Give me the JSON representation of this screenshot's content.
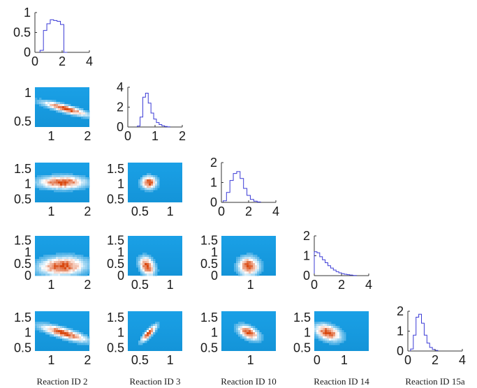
{
  "chart_data": {
    "type": "corner",
    "variables": [
      "Reaction ID 2",
      "Reaction ID 3",
      "Reaction ID 10",
      "Reaction ID 14",
      "Reaction ID 15a"
    ],
    "colors": {
      "histogram_line": "#3b3bd6",
      "density_low": "#1a9be0",
      "density_mid": "#ffffff",
      "density_high": "#d9480f",
      "axis": "#333333"
    },
    "diagonals": [
      {
        "variable": "Reaction ID 2",
        "xlim": [
          0,
          4
        ],
        "xticks": [
          "0",
          "2",
          "4"
        ],
        "ylim": [
          0,
          1
        ],
        "yticks": [
          "0",
          "0.5",
          "1"
        ],
        "hist": {
          "x": [
            0.5,
            0.75,
            1.0,
            1.25,
            1.5,
            1.75,
            2.0,
            2.25
          ],
          "y": [
            0.05,
            0.55,
            0.72,
            0.82,
            0.8,
            0.78,
            0.7,
            0.0
          ]
        }
      },
      {
        "variable": "Reaction ID 3",
        "xlim": [
          0,
          2
        ],
        "xticks": [
          "0",
          "1",
          "2"
        ],
        "ylim": [
          0,
          4
        ],
        "yticks": [
          "0",
          "2",
          "4"
        ],
        "hist": {
          "x": [
            0.4,
            0.5,
            0.6,
            0.7,
            0.8,
            0.9,
            1.0,
            1.1,
            1.2,
            1.3,
            1.4,
            1.5
          ],
          "y": [
            0.1,
            1.0,
            3.0,
            3.4,
            2.4,
            1.4,
            0.8,
            0.45,
            0.25,
            0.12,
            0.05,
            0.02
          ]
        }
      },
      {
        "variable": "Reaction ID 10",
        "xlim": [
          0,
          4
        ],
        "xticks": [
          "0",
          "2",
          "4"
        ],
        "ylim": [
          0,
          2
        ],
        "yticks": [
          "0",
          "1",
          "2"
        ],
        "hist": {
          "x": [
            0.25,
            0.5,
            0.75,
            1.0,
            1.25,
            1.5,
            1.75,
            2.0,
            2.25,
            2.5,
            2.75
          ],
          "y": [
            0.08,
            0.5,
            1.1,
            1.45,
            1.55,
            1.2,
            0.7,
            0.35,
            0.15,
            0.06,
            0.02
          ]
        }
      },
      {
        "variable": "Reaction ID 14",
        "xlim": [
          0,
          4
        ],
        "xticks": [
          "0",
          "2",
          "4"
        ],
        "ylim": [
          0,
          2
        ],
        "yticks": [
          "0",
          "1",
          "2"
        ],
        "hist": {
          "x": [
            0.1,
            0.3,
            0.5,
            0.7,
            0.9,
            1.1,
            1.3,
            1.5,
            1.7,
            1.9,
            2.1,
            2.3,
            2.5,
            2.7,
            3.0
          ],
          "y": [
            1.2,
            1.15,
            0.95,
            0.8,
            0.65,
            0.5,
            0.38,
            0.28,
            0.2,
            0.14,
            0.1,
            0.07,
            0.05,
            0.03,
            0.01
          ]
        }
      },
      {
        "variable": "Reaction ID 15a",
        "xlim": [
          0,
          4
        ],
        "xticks": [
          "0",
          "2",
          "4"
        ],
        "ylim": [
          0,
          2
        ],
        "yticks": [
          "0",
          "1",
          "2"
        ],
        "hist": {
          "x": [
            0.3,
            0.5,
            0.7,
            0.9,
            1.1,
            1.3,
            1.5,
            1.7,
            1.9,
            2.1
          ],
          "y": [
            0.1,
            0.8,
            1.7,
            1.85,
            1.4,
            0.8,
            0.4,
            0.18,
            0.08,
            0.03
          ]
        }
      }
    ],
    "offdiagonal": [
      {
        "row": 1,
        "col": 0,
        "xlim": [
          0.55,
          2.05
        ],
        "ylim": [
          0.4,
          1.1
        ],
        "xticks": [
          {
            "v": 1,
            "t": "1"
          },
          {
            "v": 2,
            "t": "2"
          }
        ],
        "yticks": [
          {
            "v": 0.5,
            "t": "0.5"
          },
          {
            "v": 1,
            "t": "1"
          }
        ],
        "mean": [
          1.4,
          0.72
        ],
        "sd": [
          0.4,
          0.08
        ],
        "corr": -0.85
      },
      {
        "row": 2,
        "col": 0,
        "xlim": [
          0.55,
          2.05
        ],
        "ylim": [
          0.4,
          1.7
        ],
        "xticks": [
          {
            "v": 1,
            "t": "1"
          },
          {
            "v": 2,
            "t": "2"
          }
        ],
        "yticks": [
          {
            "v": 0.5,
            "t": "0.5"
          },
          {
            "v": 1,
            "t": "1"
          },
          {
            "v": 1.5,
            "t": "1.5"
          }
        ],
        "mean": [
          1.3,
          1.05
        ],
        "sd": [
          0.4,
          0.13
        ],
        "corr": 0.0
      },
      {
        "row": 2,
        "col": 1,
        "xlim": [
          0.3,
          1.2
        ],
        "ylim": [
          0.4,
          1.7
        ],
        "xticks": [
          {
            "v": 0.5,
            "t": "0.5"
          },
          {
            "v": 1,
            "t": "1"
          }
        ],
        "yticks": [
          {
            "v": 0.5,
            "t": "0.5"
          },
          {
            "v": 1,
            "t": "1"
          },
          {
            "v": 1.5,
            "t": "1.5"
          }
        ],
        "mean": [
          0.65,
          1.05
        ],
        "sd": [
          0.08,
          0.13
        ],
        "corr": 0.0
      },
      {
        "row": 3,
        "col": 0,
        "xlim": [
          0.55,
          2.05
        ],
        "ylim": [
          0,
          1.7
        ],
        "xticks": [
          {
            "v": 1,
            "t": "1"
          },
          {
            "v": 2,
            "t": "2"
          }
        ],
        "yticks": [
          {
            "v": 0,
            "t": "0"
          },
          {
            "v": 0.5,
            "t": "0.5"
          },
          {
            "v": 1,
            "t": "1"
          },
          {
            "v": 1.5,
            "t": "1.5"
          }
        ],
        "mean": [
          1.3,
          0.4
        ],
        "sd": [
          0.4,
          0.25
        ],
        "corr": 0.1
      },
      {
        "row": 3,
        "col": 1,
        "xlim": [
          0.3,
          1.2
        ],
        "ylim": [
          0,
          1.7
        ],
        "xticks": [
          {
            "v": 0.5,
            "t": "0.5"
          },
          {
            "v": 1,
            "t": "1"
          }
        ],
        "yticks": [
          {
            "v": 0,
            "t": "0"
          },
          {
            "v": 0.5,
            "t": "0.5"
          },
          {
            "v": 1,
            "t": "1"
          },
          {
            "v": 1.5,
            "t": "1.5"
          }
        ],
        "mean": [
          0.62,
          0.4
        ],
        "sd": [
          0.08,
          0.25
        ],
        "corr": -0.3
      },
      {
        "row": 3,
        "col": 2,
        "xlim": [
          0.2,
          1.7
        ],
        "ylim": [
          0,
          1.7
        ],
        "xticks": [
          {
            "v": 1,
            "t": "1"
          }
        ],
        "yticks": [
          {
            "v": 0,
            "t": "0"
          },
          {
            "v": 0.5,
            "t": "0.5"
          },
          {
            "v": 1,
            "t": "1"
          },
          {
            "v": 1.5,
            "t": "1.5"
          }
        ],
        "mean": [
          0.95,
          0.4
        ],
        "sd": [
          0.18,
          0.25
        ],
        "corr": 0.0
      },
      {
        "row": 4,
        "col": 0,
        "xlim": [
          0.55,
          2.05
        ],
        "ylim": [
          0.4,
          1.7
        ],
        "xticks": [
          {
            "v": 1,
            "t": "1"
          },
          {
            "v": 2,
            "t": "2"
          }
        ],
        "yticks": [
          {
            "v": 0.5,
            "t": "0.5"
          },
          {
            "v": 1,
            "t": "1"
          },
          {
            "v": 1.5,
            "t": "1.5"
          }
        ],
        "mean": [
          1.35,
          0.98
        ],
        "sd": [
          0.4,
          0.17
        ],
        "corr": -0.8
      },
      {
        "row": 4,
        "col": 1,
        "xlim": [
          0.3,
          1.2
        ],
        "ylim": [
          0.4,
          1.7
        ],
        "xticks": [
          {
            "v": 0.5,
            "t": "0.5"
          },
          {
            "v": 1,
            "t": "1"
          }
        ],
        "yticks": [
          {
            "v": 0.5,
            "t": "0.5"
          },
          {
            "v": 1,
            "t": "1"
          },
          {
            "v": 1.5,
            "t": "1.5"
          }
        ],
        "mean": [
          0.65,
          0.98
        ],
        "sd": [
          0.08,
          0.17
        ],
        "corr": 0.85
      },
      {
        "row": 4,
        "col": 2,
        "xlim": [
          0.2,
          1.7
        ],
        "ylim": [
          0.4,
          1.7
        ],
        "xticks": [
          {
            "v": 1,
            "t": "1"
          }
        ],
        "yticks": [
          {
            "v": 0.5,
            "t": "0.5"
          },
          {
            "v": 1,
            "t": "1"
          },
          {
            "v": 1.5,
            "t": "1.5"
          }
        ],
        "mean": [
          0.95,
          1.0
        ],
        "sd": [
          0.18,
          0.15
        ],
        "corr": -0.5
      },
      {
        "row": 4,
        "col": 3,
        "xlim": [
          -0.1,
          1.9
        ],
        "ylim": [
          0.4,
          1.7
        ],
        "xticks": [
          {
            "v": 0,
            "t": "0"
          },
          {
            "v": 1,
            "t": "1"
          }
        ],
        "yticks": [
          {
            "v": 0.5,
            "t": "0.5"
          },
          {
            "v": 1,
            "t": "1"
          },
          {
            "v": 1.5,
            "t": "1.5"
          }
        ],
        "mean": [
          0.4,
          1.0
        ],
        "sd": [
          0.3,
          0.17
        ],
        "corr": -0.4
      }
    ]
  }
}
